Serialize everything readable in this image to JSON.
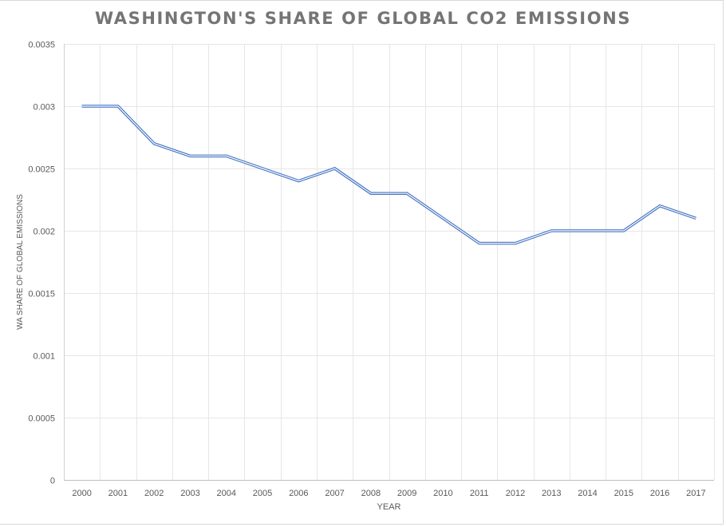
{
  "chart_data": {
    "type": "line",
    "title": "WASHINGTON'S SHARE OF GLOBAL CO2 EMISSIONS",
    "xlabel": "YEAR",
    "ylabel": "WA SHARE OF GLOBAL EMISSIONS",
    "categories": [
      "2000",
      "2001",
      "2002",
      "2003",
      "2004",
      "2005",
      "2006",
      "2007",
      "2008",
      "2009",
      "2010",
      "2011",
      "2012",
      "2013",
      "2014",
      "2015",
      "2016",
      "2017"
    ],
    "series": [
      {
        "name": "WA share of global emissions",
        "color": "#4472c4",
        "values": [
          0.003,
          0.003,
          0.0027,
          0.0026,
          0.0026,
          0.0025,
          0.0024,
          0.0025,
          0.0023,
          0.0023,
          0.0021,
          0.0019,
          0.0019,
          0.002,
          0.002,
          0.002,
          0.0022,
          0.0021
        ]
      }
    ],
    "ylim": [
      0,
      0.0035
    ],
    "yticks": [
      "0",
      "0.0005",
      "0.001",
      "0.0015",
      "0.002",
      "0.0025",
      "0.003",
      "0.0035"
    ],
    "ytick_values": [
      0,
      0.0005,
      0.001,
      0.0015,
      0.002,
      0.0025,
      0.003,
      0.0035
    ],
    "grid": true,
    "legend": "none"
  }
}
